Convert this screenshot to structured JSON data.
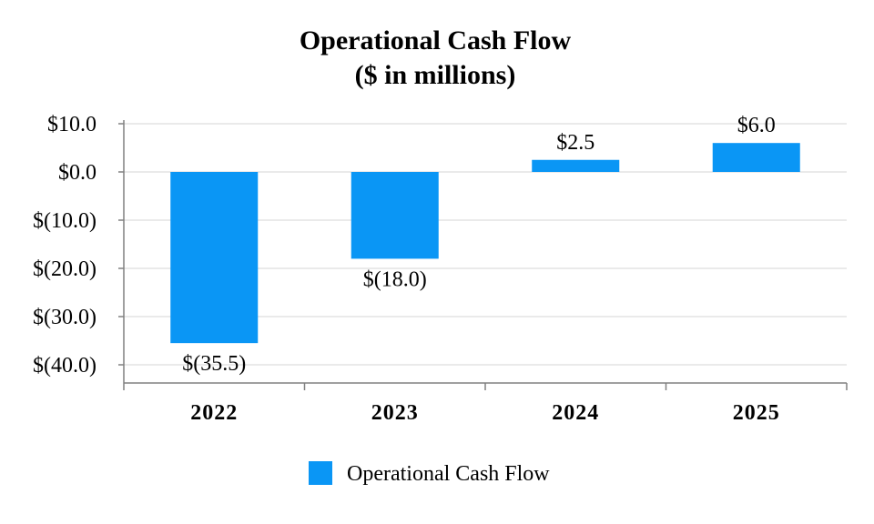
{
  "chart_data": {
    "type": "bar",
    "title": "Operational Cash Flow",
    "subtitle": "($ in millions)",
    "categories": [
      "2022",
      "2023",
      "2024",
      "2025"
    ],
    "series": [
      {
        "name": "Operational Cash Flow",
        "values": [
          -35.5,
          -18.0,
          2.5,
          6.0
        ],
        "data_labels": [
          "$(35.5)",
          "$(18.0)",
          "$2.5",
          "$6.0"
        ]
      }
    ],
    "y_ticks": [
      10,
      0,
      -10,
      -20,
      -30,
      -40
    ],
    "y_tick_labels": [
      "$10.0",
      "$0.0",
      "$(10.0)",
      "$(20.0)",
      "$(30.0)",
      "$(40.0)"
    ],
    "ylim": [
      -45,
      10
    ],
    "xlabel": "",
    "ylabel": "",
    "grid": true,
    "legend": "bottom-center",
    "colors": {
      "bar": "#0a96f5",
      "grid": "#e4e4e4",
      "axis": "#808080"
    }
  }
}
